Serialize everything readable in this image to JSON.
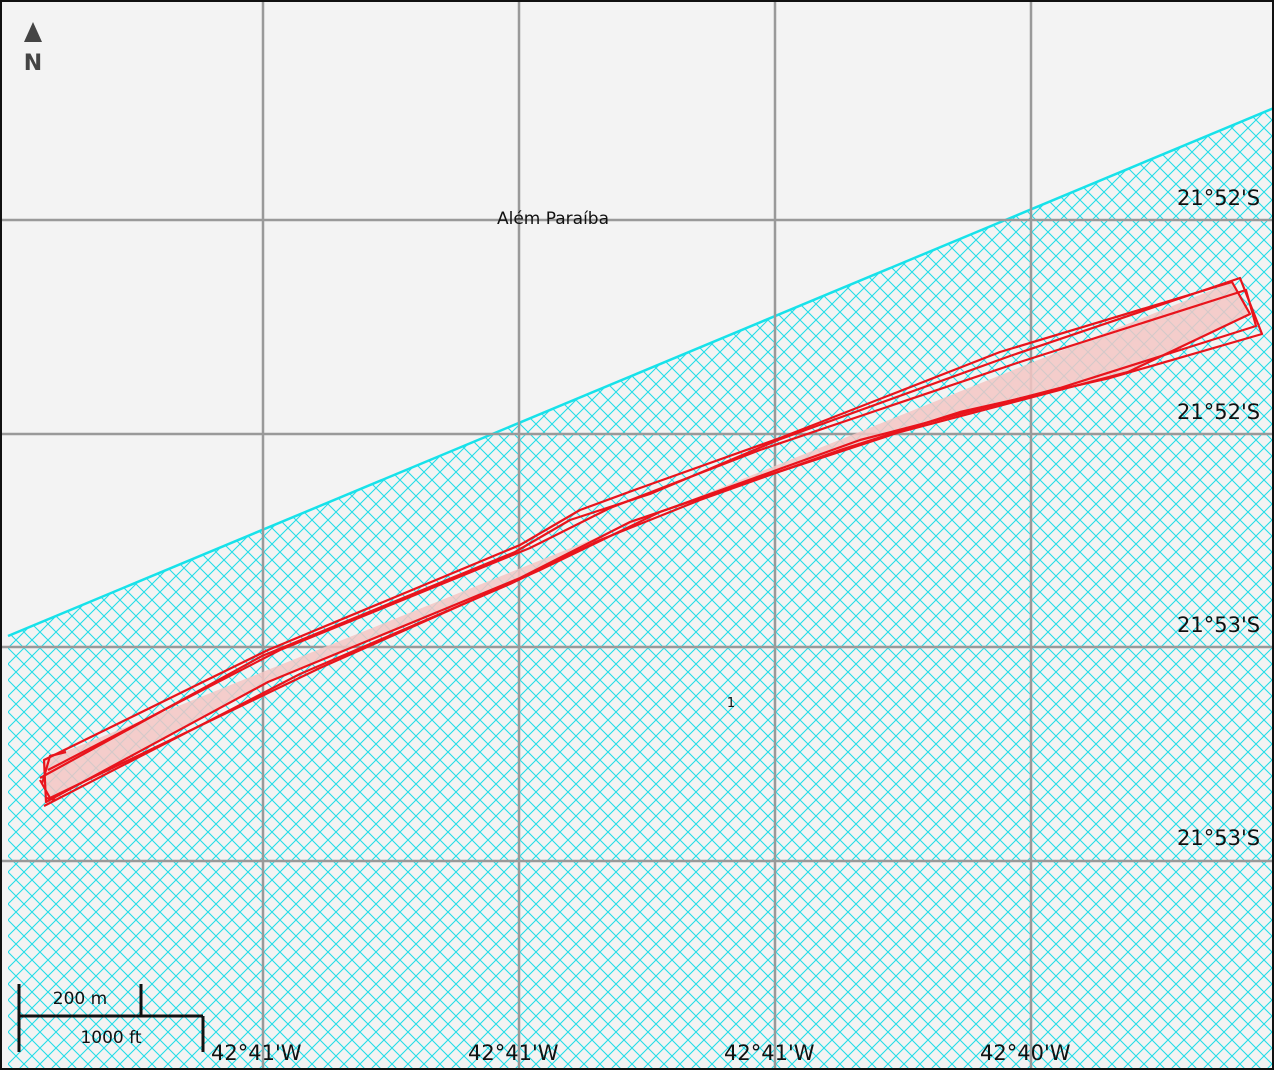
{
  "north_arrow": {
    "label": "N"
  },
  "place_label": "Além Paraíba",
  "zone_label": "1",
  "latitude_labels": [
    "21°52'S",
    "21°52'S",
    "21°53'S",
    "21°53'S"
  ],
  "longitude_labels": [
    "42°41'W",
    "42°41'W",
    "42°41'W",
    "42°40'W"
  ],
  "scale_bar": {
    "metric_label": "200 m",
    "imperial_label": "1000 ft"
  },
  "colors": {
    "background": "#f3f3f3",
    "grid": "#999999",
    "hatch": "#22dde8",
    "boundary": "#17e2ea",
    "track": "#e8141c",
    "track_fill": "#f3c6c3"
  },
  "icons": {
    "north_arrow": "north-arrow-icon"
  }
}
